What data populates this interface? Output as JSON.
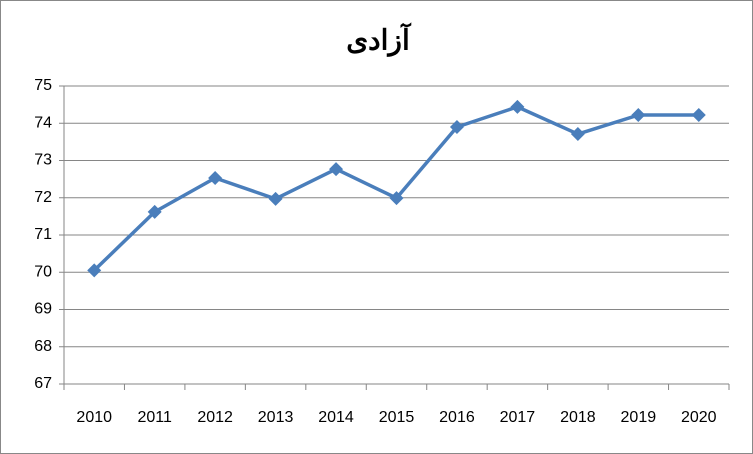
{
  "chart_data": {
    "type": "line",
    "title": "آزادی",
    "categories": [
      "2010",
      "2011",
      "2012",
      "2013",
      "2014",
      "2015",
      "2016",
      "2017",
      "2018",
      "2019",
      "2020"
    ],
    "values": [
      70.05,
      71.62,
      72.53,
      71.97,
      72.77,
      71.99,
      73.9,
      74.44,
      73.71,
      74.22,
      74.22
    ],
    "color": "#4a7ebb",
    "ylim": [
      67,
      75
    ],
    "yticks": [
      67,
      68,
      69,
      70,
      71,
      72,
      73,
      74,
      75
    ],
    "grid": true
  }
}
